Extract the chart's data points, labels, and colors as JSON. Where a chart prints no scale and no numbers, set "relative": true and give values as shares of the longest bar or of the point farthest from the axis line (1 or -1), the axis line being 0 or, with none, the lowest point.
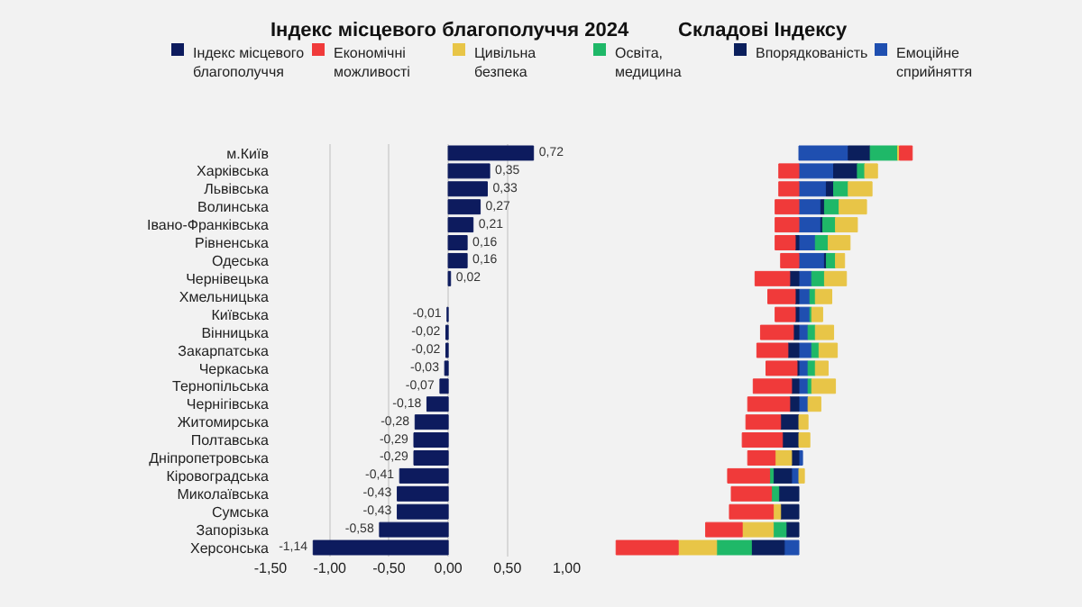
{
  "chart_data": [
    {
      "type": "bar",
      "orientation": "horizontal",
      "title": "Індекс місцевого благополуччя 2024",
      "categories": [
        "м.Київ",
        "Харківська",
        "Львівська",
        "Волинська",
        "Івано-Франківська",
        "Рівненська",
        "Одеська",
        "Чернівецька",
        "Хмельницька",
        "Київська",
        "Вінницька",
        "Закарпатська",
        "Черкаська",
        "Тернопільська",
        "Чернігівська",
        "Житомирська",
        "Полтавська",
        "Дніпропетровська",
        "Кіровоградська",
        "Миколаївська",
        "Сумська",
        "Запорізька",
        "Херсонська"
      ],
      "series": [
        {
          "name": "Індекс місцевого благополуччя",
          "color": "#0d1b5e",
          "values": [
            0.72,
            0.35,
            0.33,
            0.27,
            0.21,
            0.16,
            0.16,
            0.02,
            null,
            -0.01,
            -0.02,
            -0.02,
            -0.03,
            -0.07,
            -0.18,
            -0.28,
            -0.29,
            -0.29,
            -0.41,
            -0.43,
            -0.43,
            -0.58,
            -1.14
          ],
          "value_labels": [
            "0,72",
            "0,35",
            "0,33",
            "0,27",
            "0,21",
            "0,16",
            "0,16",
            "0,02",
            null,
            "-0,01",
            "-0,02",
            "-0,02",
            "-0,03",
            "-0,07",
            "-0,18",
            "-0,28",
            "-0,29",
            "-0,29",
            "-0,41",
            "-0,43",
            "-0,43",
            "-0,58",
            "-1,14"
          ]
        }
      ],
      "xlim": [
        -1.5,
        1.0
      ],
      "xticks": [
        {
          "value": -1.5,
          "label": "-1,50"
        },
        {
          "value": -1.0,
          "label": "-1,00"
        },
        {
          "value": -0.5,
          "label": "-0,50"
        },
        {
          "value": 0,
          "label": "0,00"
        },
        {
          "value": 0.5,
          "label": "0,50"
        },
        {
          "value": 1.0,
          "label": "1,00"
        }
      ],
      "grid": "x",
      "legend": "top"
    },
    {
      "type": "bar",
      "orientation": "horizontal",
      "stacked": true,
      "relative": true,
      "title": "Складові Індексу",
      "categories": [
        null,
        null,
        null,
        null,
        null,
        null,
        null,
        null,
        null,
        null,
        null,
        null,
        null,
        null,
        null,
        null,
        null,
        null,
        null,
        null,
        null,
        null,
        null
      ],
      "series": [
        {
          "name": "Емоційне сприйняття",
          "color": "#1f4fb0",
          "values": [
            0.27,
            0.19,
            0.15,
            0.12,
            0.12,
            0.09,
            0.14,
            0.07,
            0.06,
            0.06,
            0.05,
            0.07,
            0.05,
            0.05,
            0.05,
            null,
            null,
            0.02,
            -0.04,
            null,
            null,
            null,
            -0.08
          ]
        },
        {
          "name": "Впорядкованість",
          "color": "#0b1f5c",
          "values": [
            0.12,
            0.13,
            0.04,
            0.02,
            0.01,
            -0.02,
            0.01,
            -0.05,
            -0.02,
            -0.02,
            -0.03,
            -0.06,
            -0.01,
            -0.04,
            -0.05,
            -0.1,
            -0.09,
            -0.04,
            -0.1,
            -0.11,
            -0.1,
            -0.07,
            -0.18
          ]
        },
        {
          "name": "Освіта, медицина",
          "color": "#1fb868",
          "values": [
            0.15,
            0.04,
            0.08,
            0.08,
            0.07,
            0.07,
            0.05,
            0.07,
            0.03,
            0.01,
            0.04,
            0.04,
            0.04,
            0.02,
            null,
            null,
            null,
            null,
            -0.02,
            -0.04,
            null,
            -0.07,
            -0.19
          ]
        },
        {
          "name": "Цивільна безпека",
          "color": "#e8c547",
          "values": [
            0.01,
            0.07,
            0.13,
            0.15,
            0.12,
            0.12,
            0.05,
            0.12,
            0.09,
            0.06,
            0.1,
            0.1,
            0.07,
            0.13,
            0.07,
            0.05,
            0.06,
            -0.09,
            0.03,
            null,
            -0.04,
            -0.17,
            -0.21
          ]
        },
        {
          "name": "Економічні можливості",
          "color": "#f03a3a",
          "values": [
            0.07,
            -0.11,
            -0.11,
            -0.13,
            -0.13,
            -0.11,
            -0.1,
            -0.19,
            -0.15,
            -0.11,
            -0.18,
            -0.17,
            -0.17,
            -0.21,
            -0.23,
            -0.19,
            -0.22,
            -0.15,
            -0.23,
            -0.22,
            -0.24,
            -0.2,
            -0.34
          ]
        }
      ],
      "grid": false,
      "legend": "top"
    }
  ]
}
